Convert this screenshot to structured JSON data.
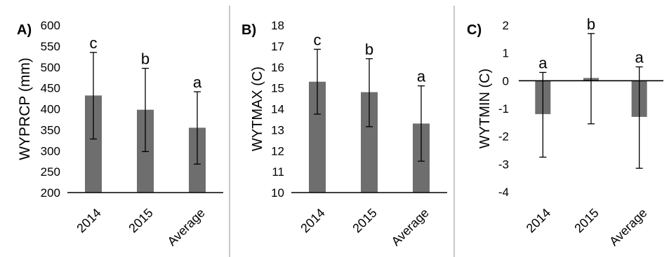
{
  "chart_data": [
    {
      "type": "bar",
      "panel_label": "A)",
      "title": "",
      "xlabel": "",
      "ylabel": "WYPRCP (mm)",
      "categories": [
        "2014",
        "2015",
        "Average"
      ],
      "values": [
        432,
        398,
        355
      ],
      "error_low": [
        328,
        298,
        268
      ],
      "error_high": [
        535,
        497,
        441
      ],
      "significance_letters": [
        "c",
        "b",
        "a"
      ],
      "ylim": [
        200,
        600
      ],
      "yticks": [
        200,
        250,
        300,
        350,
        400,
        450,
        500,
        550,
        600
      ],
      "grid": false,
      "legend": "none",
      "bar_color": "#6e6e6e"
    },
    {
      "type": "bar",
      "panel_label": "B)",
      "title": "",
      "xlabel": "",
      "ylabel": "WYTMAX (C)",
      "categories": [
        "2014",
        "2015",
        "Average"
      ],
      "values": [
        15.3,
        14.8,
        13.3
      ],
      "error_low": [
        13.75,
        13.15,
        11.5
      ],
      "error_high": [
        16.85,
        16.4,
        15.1
      ],
      "significance_letters": [
        "c",
        "b",
        "a"
      ],
      "ylim": [
        10,
        18
      ],
      "yticks": [
        10,
        11,
        12,
        13,
        14,
        15,
        16,
        17,
        18
      ],
      "grid": false,
      "legend": "none",
      "bar_color": "#6e6e6e"
    },
    {
      "type": "bar",
      "panel_label": "C)",
      "title": "",
      "xlabel": "",
      "ylabel": "WYTMIN (C)",
      "categories": [
        "2014",
        "2015",
        "Average"
      ],
      "values": [
        -1.2,
        0.1,
        -1.3
      ],
      "error_low": [
        -2.75,
        -1.55,
        -3.15
      ],
      "error_high": [
        0.3,
        1.7,
        0.5
      ],
      "significance_letters": [
        "a",
        "b",
        "a"
      ],
      "ylim": [
        -4,
        2
      ],
      "yticks": [
        -4,
        -3,
        -2,
        -1,
        0,
        1,
        2
      ],
      "grid": false,
      "legend": "none",
      "bar_color": "#6e6e6e"
    }
  ]
}
